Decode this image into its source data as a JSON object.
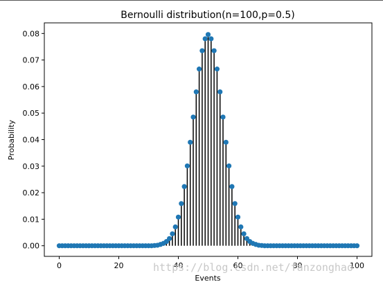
{
  "chart_data": {
    "type": "stem",
    "title": "Bernoulli distribution(n=100,p=0.5)",
    "xlabel": "Events",
    "ylabel": "Probability",
    "xlim": [
      -5,
      105
    ],
    "ylim": [
      -0.004,
      0.084
    ],
    "xticks": [
      0,
      20,
      40,
      60,
      80,
      100
    ],
    "xtick_labels": [
      "0",
      "20",
      "40",
      "60",
      "80",
      "100"
    ],
    "yticks": [
      0.0,
      0.01,
      0.02,
      0.03,
      0.04,
      0.05,
      0.06,
      0.07,
      0.08
    ],
    "ytick_labels": [
      "0.00",
      "0.01",
      "0.02",
      "0.03",
      "0.04",
      "0.05",
      "0.06",
      "0.07",
      "0.08"
    ],
    "marker_color": "#1f77b4",
    "stem_color": "#000000",
    "grid": false,
    "x": [
      0,
      1,
      2,
      3,
      4,
      5,
      6,
      7,
      8,
      9,
      10,
      11,
      12,
      13,
      14,
      15,
      16,
      17,
      18,
      19,
      20,
      21,
      22,
      23,
      24,
      25,
      26,
      27,
      28,
      29,
      30,
      31,
      32,
      33,
      34,
      35,
      36,
      37,
      38,
      39,
      40,
      41,
      42,
      43,
      44,
      45,
      46,
      47,
      48,
      49,
      50,
      51,
      52,
      53,
      54,
      55,
      56,
      57,
      58,
      59,
      60,
      61,
      62,
      63,
      64,
      65,
      66,
      67,
      68,
      69,
      70,
      71,
      72,
      73,
      74,
      75,
      76,
      77,
      78,
      79,
      80,
      81,
      82,
      83,
      84,
      85,
      86,
      87,
      88,
      89,
      90,
      91,
      92,
      93,
      94,
      95,
      96,
      97,
      98,
      99,
      100
    ],
    "y": [
      0,
      0,
      0,
      0,
      0,
      0,
      0,
      0,
      0,
      0,
      0,
      0,
      0,
      0,
      0,
      0,
      0,
      0,
      0,
      0,
      0,
      0,
      0,
      0,
      0,
      0,
      0,
      0,
      0,
      0,
      0.0,
      0.0,
      0.0001,
      0.0002,
      0.0005,
      0.0009,
      0.0016,
      0.0027,
      0.0045,
      0.0071,
      0.0108,
      0.0159,
      0.0223,
      0.0301,
      0.039,
      0.0485,
      0.058,
      0.0666,
      0.0735,
      0.078,
      0.0796,
      0.078,
      0.0735,
      0.0666,
      0.058,
      0.0485,
      0.039,
      0.0301,
      0.0223,
      0.0159,
      0.0108,
      0.0071,
      0.0045,
      0.0027,
      0.0016,
      0.0009,
      0.0005,
      0.0002,
      0.0001,
      0.0,
      0.0,
      0,
      0,
      0,
      0,
      0,
      0,
      0,
      0,
      0,
      0,
      0,
      0,
      0,
      0,
      0,
      0,
      0,
      0,
      0,
      0,
      0,
      0,
      0,
      0,
      0,
      0,
      0,
      0,
      0,
      0
    ]
  },
  "watermark": "https://blog.csdn.net/fanzonghao"
}
